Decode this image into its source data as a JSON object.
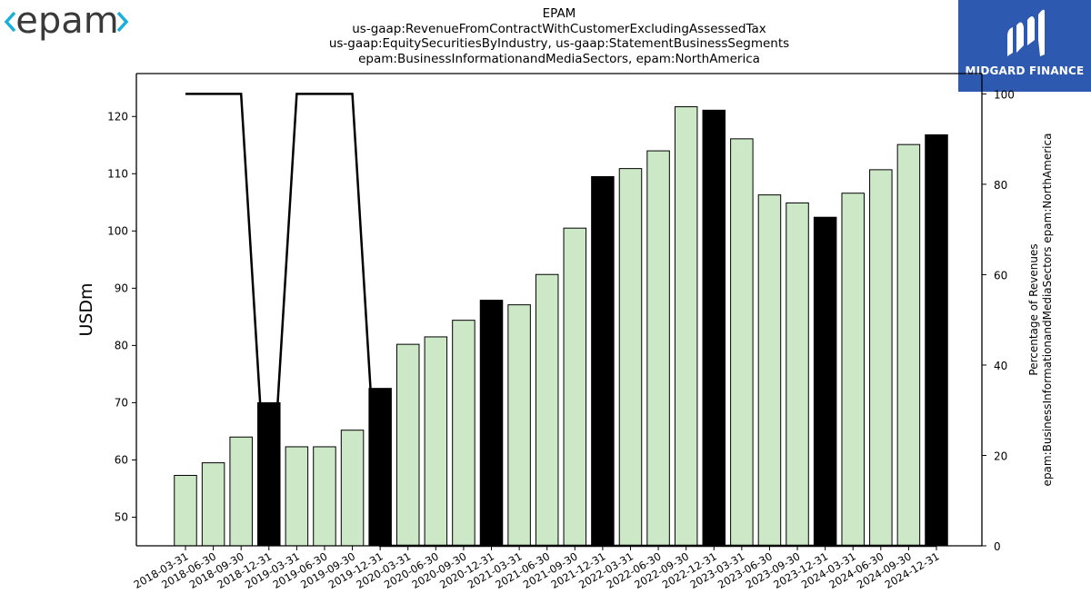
{
  "header": {
    "logo_text": "epam",
    "brand_name": "MIDGARD FINANCE"
  },
  "chart_data": {
    "type": "bar",
    "title_lines": [
      "EPAM",
      "us-gaap:RevenueFromContractWithCustomerExcludingAssessedTax",
      "us-gaap:EquitySecuritiesByIndustry, us-gaap:StatementBusinessSegments",
      "epam:BusinessInformationandMediaSectors, epam:NorthAmerica"
    ],
    "ylabel": "USDm",
    "y2label_lines": [
      "Percentage of Revenues",
      "epam:BusinessInformationandMediaSectors epam:NorthAmerica"
    ],
    "ylim": [
      45,
      127.5
    ],
    "y2lim": [
      0,
      104.5
    ],
    "yticks": [
      50,
      60,
      70,
      80,
      90,
      100,
      110,
      120
    ],
    "y2ticks": [
      0,
      20,
      40,
      60,
      80,
      100
    ],
    "categories": [
      "2018-03-31",
      "2018-06-30",
      "2018-09-30",
      "2018-12-31",
      "2019-03-31",
      "2019-06-30",
      "2019-09-30",
      "2019-12-31",
      "2020-03-31",
      "2020-06-30",
      "2020-09-30",
      "2020-12-31",
      "2021-03-31",
      "2021-06-30",
      "2021-09-30",
      "2021-12-31",
      "2022-03-31",
      "2022-06-30",
      "2022-09-30",
      "2022-12-31",
      "2023-03-31",
      "2023-06-30",
      "2023-09-30",
      "2023-12-31",
      "2024-03-31",
      "2024-06-30",
      "2024-09-30",
      "2024-12-31"
    ],
    "series": [
      {
        "type": "bar",
        "values": [
          57.3,
          59.5,
          64.0,
          70.0,
          62.3,
          62.3,
          65.2,
          72.5,
          80.2,
          81.5,
          84.4,
          87.9,
          87.1,
          92.4,
          100.5,
          109.5,
          110.9,
          114.0,
          121.7,
          121.1,
          116.1,
          106.3,
          104.9,
          102.4,
          106.6,
          110.7,
          115.1,
          116.8
        ],
        "highlight": [
          false,
          false,
          false,
          true,
          false,
          false,
          false,
          true,
          false,
          false,
          false,
          true,
          false,
          false,
          false,
          true,
          false,
          false,
          false,
          true,
          false,
          false,
          false,
          true,
          false,
          false,
          false,
          true
        ],
        "color": "#cce8c6",
        "highlight_color": "#000000"
      },
      {
        "type": "line",
        "axis": "right",
        "values": [
          100,
          100,
          100,
          0,
          100,
          100,
          100,
          0,
          0,
          0,
          0,
          0,
          0,
          0,
          0,
          0,
          0,
          0,
          0,
          0,
          0,
          0,
          0,
          0,
          0,
          0,
          0,
          0
        ],
        "color": "#000000"
      }
    ],
    "grid": false
  }
}
